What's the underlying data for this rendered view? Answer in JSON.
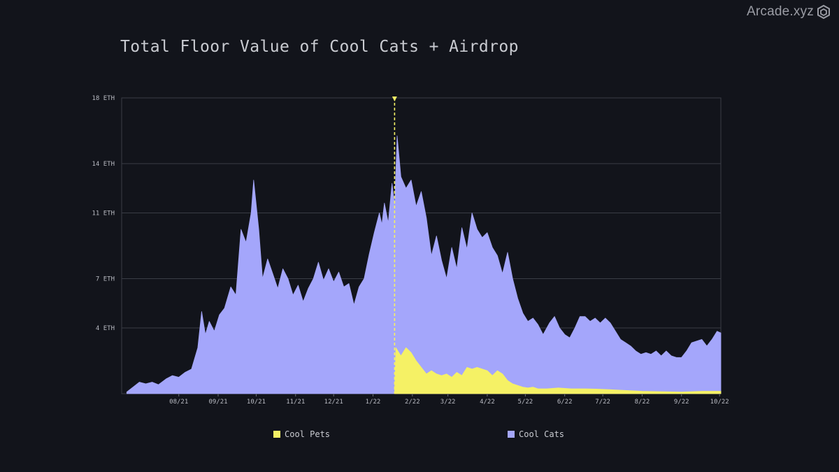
{
  "brand": {
    "name": "Arcade.xyz",
    "logo_icon": "arcade-hexagon-logo-icon"
  },
  "chart_data": {
    "type": "area",
    "title": "Total Floor Value of Cool Cats + Airdrop",
    "xlabel": "",
    "ylabel": "",
    "y_tick_labels": [
      "4 ETH",
      "7 ETH",
      "11 ETH",
      "14 ETH",
      "18 ETH"
    ],
    "x_tick_labels": [
      "08/21",
      "09/21",
      "10/21",
      "11/21",
      "12/21",
      "1/22",
      "2/22",
      "3/22",
      "4/22",
      "5/22",
      "6/22",
      "7/22",
      "8/22",
      "9/22",
      "10/22"
    ],
    "grid": "horizontal",
    "legend_position": "bottom",
    "annotation": {
      "type": "vertical-dashed-line",
      "x": "2022-02-01",
      "label": "",
      "color": "#f5f165"
    },
    "series": [
      {
        "name": "Cool Cats",
        "color": "#a4a6fb",
        "points": [
          [
            "2021-07-05",
            0.1
          ],
          [
            "2021-07-10",
            0.4
          ],
          [
            "2021-07-15",
            0.7
          ],
          [
            "2021-07-20",
            0.6
          ],
          [
            "2021-07-25",
            0.7
          ],
          [
            "2021-07-30",
            0.55
          ],
          [
            "2021-08-05",
            0.9
          ],
          [
            "2021-08-10",
            1.1
          ],
          [
            "2021-08-15",
            1.0
          ],
          [
            "2021-08-20",
            1.3
          ],
          [
            "2021-08-25",
            1.5
          ],
          [
            "2021-08-30",
            2.8
          ],
          [
            "2021-09-02",
            5.0
          ],
          [
            "2021-09-05",
            3.6
          ],
          [
            "2021-09-08",
            4.4
          ],
          [
            "2021-09-12",
            3.8
          ],
          [
            "2021-09-16",
            4.8
          ],
          [
            "2021-09-20",
            5.2
          ],
          [
            "2021-09-25",
            6.5
          ],
          [
            "2021-09-29",
            6.0
          ],
          [
            "2021-10-03",
            10.0
          ],
          [
            "2021-10-07",
            9.2
          ],
          [
            "2021-10-11",
            11.0
          ],
          [
            "2021-10-13",
            13.0
          ],
          [
            "2021-10-17",
            10.0
          ],
          [
            "2021-10-20",
            7.0
          ],
          [
            "2021-10-24",
            8.2
          ],
          [
            "2021-10-28",
            7.3
          ],
          [
            "2021-11-01",
            6.4
          ],
          [
            "2021-11-05",
            7.6
          ],
          [
            "2021-11-09",
            7.0
          ],
          [
            "2021-11-13",
            6.0
          ],
          [
            "2021-11-17",
            6.6
          ],
          [
            "2021-11-21",
            5.6
          ],
          [
            "2021-11-25",
            6.4
          ],
          [
            "2021-11-29",
            7.0
          ],
          [
            "2021-12-03",
            8.0
          ],
          [
            "2021-12-07",
            6.9
          ],
          [
            "2021-12-11",
            7.6
          ],
          [
            "2021-12-15",
            6.8
          ],
          [
            "2021-12-19",
            7.4
          ],
          [
            "2021-12-23",
            6.5
          ],
          [
            "2021-12-27",
            6.7
          ],
          [
            "2021-12-31",
            5.4
          ],
          [
            "2022-01-04",
            6.5
          ],
          [
            "2022-01-08",
            7.0
          ],
          [
            "2022-01-12",
            8.5
          ],
          [
            "2022-01-16",
            9.8
          ],
          [
            "2022-01-20",
            11.0
          ],
          [
            "2022-01-22",
            10.3
          ],
          [
            "2022-01-24",
            11.6
          ],
          [
            "2022-01-27",
            10.4
          ],
          [
            "2022-01-30",
            12.8
          ],
          [
            "2022-02-01",
            11.5
          ],
          [
            "2022-02-03",
            15.7
          ],
          [
            "2022-02-06",
            13.2
          ],
          [
            "2022-02-10",
            12.5
          ],
          [
            "2022-02-14",
            13.0
          ],
          [
            "2022-02-18",
            11.4
          ],
          [
            "2022-02-22",
            12.3
          ],
          [
            "2022-02-26",
            10.7
          ],
          [
            "2022-03-02",
            8.4
          ],
          [
            "2022-03-06",
            9.6
          ],
          [
            "2022-03-10",
            8.1
          ],
          [
            "2022-03-14",
            7.0
          ],
          [
            "2022-03-18",
            8.9
          ],
          [
            "2022-03-22",
            7.6
          ],
          [
            "2022-03-26",
            10.1
          ],
          [
            "2022-03-30",
            8.8
          ],
          [
            "2022-04-03",
            11.0
          ],
          [
            "2022-04-07",
            10.0
          ],
          [
            "2022-04-11",
            9.5
          ],
          [
            "2022-04-15",
            9.8
          ],
          [
            "2022-04-19",
            8.9
          ],
          [
            "2022-04-23",
            8.4
          ],
          [
            "2022-04-27",
            7.3
          ],
          [
            "2022-05-01",
            8.6
          ],
          [
            "2022-05-05",
            7.0
          ],
          [
            "2022-05-09",
            5.8
          ],
          [
            "2022-05-13",
            4.9
          ],
          [
            "2022-05-17",
            4.4
          ],
          [
            "2022-05-21",
            4.6
          ],
          [
            "2022-05-25",
            4.2
          ],
          [
            "2022-05-29",
            3.6
          ],
          [
            "2022-06-03",
            4.3
          ],
          [
            "2022-06-07",
            4.7
          ],
          [
            "2022-06-11",
            4.0
          ],
          [
            "2022-06-15",
            3.6
          ],
          [
            "2022-06-19",
            3.4
          ],
          [
            "2022-06-23",
            4.0
          ],
          [
            "2022-06-27",
            4.7
          ],
          [
            "2022-07-01",
            4.7
          ],
          [
            "2022-07-05",
            4.4
          ],
          [
            "2022-07-09",
            4.6
          ],
          [
            "2022-07-13",
            4.3
          ],
          [
            "2022-07-17",
            4.6
          ],
          [
            "2022-07-21",
            4.3
          ],
          [
            "2022-07-25",
            3.8
          ],
          [
            "2022-07-29",
            3.3
          ],
          [
            "2022-08-02",
            3.1
          ],
          [
            "2022-08-06",
            2.9
          ],
          [
            "2022-08-10",
            2.6
          ],
          [
            "2022-08-14",
            2.4
          ],
          [
            "2022-08-18",
            2.5
          ],
          [
            "2022-08-22",
            2.4
          ],
          [
            "2022-08-26",
            2.6
          ],
          [
            "2022-08-30",
            2.3
          ],
          [
            "2022-09-03",
            2.6
          ],
          [
            "2022-09-07",
            2.3
          ],
          [
            "2022-09-11",
            2.2
          ],
          [
            "2022-09-15",
            2.2
          ],
          [
            "2022-09-19",
            2.6
          ],
          [
            "2022-09-23",
            3.1
          ],
          [
            "2022-09-27",
            3.2
          ],
          [
            "2022-10-01",
            3.3
          ],
          [
            "2022-10-05",
            2.9
          ],
          [
            "2022-10-09",
            3.3
          ],
          [
            "2022-10-13",
            3.8
          ],
          [
            "2022-10-16",
            3.7
          ]
        ]
      },
      {
        "name": "Cool Pets",
        "color": "#f5f165",
        "points": [
          [
            "2022-02-01",
            0.0
          ],
          [
            "2022-02-02",
            2.8
          ],
          [
            "2022-02-06",
            2.3
          ],
          [
            "2022-02-10",
            2.8
          ],
          [
            "2022-02-14",
            2.5
          ],
          [
            "2022-02-18",
            2.0
          ],
          [
            "2022-02-22",
            1.6
          ],
          [
            "2022-02-26",
            1.2
          ],
          [
            "2022-03-02",
            1.4
          ],
          [
            "2022-03-06",
            1.2
          ],
          [
            "2022-03-10",
            1.1
          ],
          [
            "2022-03-14",
            1.2
          ],
          [
            "2022-03-18",
            1.0
          ],
          [
            "2022-03-22",
            1.3
          ],
          [
            "2022-03-26",
            1.1
          ],
          [
            "2022-03-30",
            1.6
          ],
          [
            "2022-04-03",
            1.5
          ],
          [
            "2022-04-07",
            1.6
          ],
          [
            "2022-04-11",
            1.5
          ],
          [
            "2022-04-15",
            1.4
          ],
          [
            "2022-04-19",
            1.1
          ],
          [
            "2022-04-23",
            1.4
          ],
          [
            "2022-04-27",
            1.2
          ],
          [
            "2022-05-01",
            0.8
          ],
          [
            "2022-05-05",
            0.6
          ],
          [
            "2022-05-09",
            0.5
          ],
          [
            "2022-05-13",
            0.4
          ],
          [
            "2022-05-17",
            0.35
          ],
          [
            "2022-05-21",
            0.4
          ],
          [
            "2022-05-25",
            0.3
          ],
          [
            "2022-06-01",
            0.3
          ],
          [
            "2022-06-10",
            0.35
          ],
          [
            "2022-06-20",
            0.3
          ],
          [
            "2022-07-01",
            0.3
          ],
          [
            "2022-07-10",
            0.28
          ],
          [
            "2022-07-20",
            0.25
          ],
          [
            "2022-08-01",
            0.2
          ],
          [
            "2022-08-15",
            0.15
          ],
          [
            "2022-09-01",
            0.12
          ],
          [
            "2022-09-15",
            0.1
          ],
          [
            "2022-10-01",
            0.15
          ],
          [
            "2022-10-16",
            0.15
          ]
        ]
      }
    ]
  }
}
